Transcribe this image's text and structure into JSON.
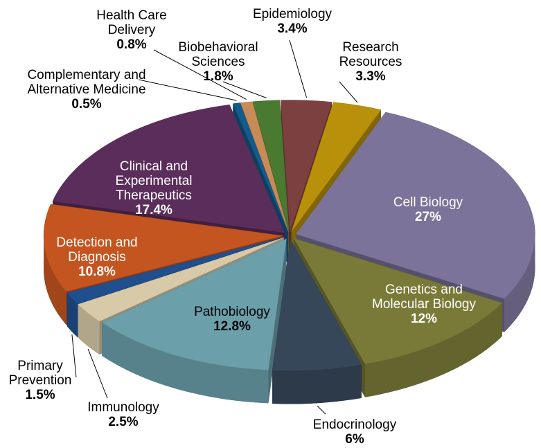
{
  "chart_data": {
    "type": "pie",
    "categories": [
      "Cell Biology",
      "Genetics and Molecular Biology",
      "Endocrinology",
      "Pathobiology",
      "Immunology",
      "Primary Prevention",
      "Detection and Diagnosis",
      "Clinical and Experimental Therapeutics",
      "Complementary and Alternative Medicine",
      "Health Care Delivery",
      "Biobehavioral Sciences",
      "Epidemiology",
      "Research Resources"
    ],
    "values": [
      27,
      12,
      6,
      12.8,
      2.5,
      1.5,
      10.8,
      17.4,
      0.5,
      0.8,
      1.8,
      3.4,
      3.3
    ],
    "value_labels": [
      "27%",
      "12%",
      "6%",
      "12.8%",
      "2.5%",
      "1.5%",
      "10.8%",
      "17.4%",
      "0.5%",
      "0.8%",
      "1.8%",
      "3.4%",
      "3.3%"
    ],
    "colors": [
      "#7b7399",
      "#7a7a38",
      "#37475a",
      "#6b9faa",
      "#d8c9a8",
      "#1f4f8f",
      "#c45520",
      "#5b2d5a",
      "#145a8a",
      "#c98b56",
      "#4a7a30",
      "#7d4040",
      "#b8900a"
    ]
  }
}
